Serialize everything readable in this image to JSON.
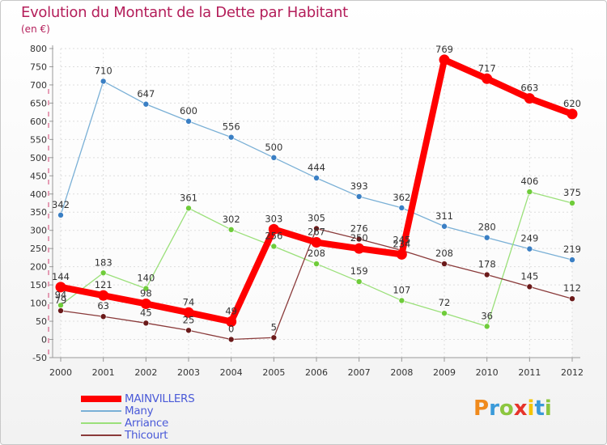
{
  "header": {
    "title": "Evolution du Montant de la Dette par Habitant",
    "unit": "(en €)"
  },
  "logo": {
    "text": "Proxiti",
    "letters": [
      {
        "ch": "P",
        "color": "#f08a1c"
      },
      {
        "ch": "r",
        "color": "#3a9ad9"
      },
      {
        "ch": "o",
        "color": "#8cc63f"
      },
      {
        "ch": "x",
        "color": "#e6332a"
      },
      {
        "ch": "i",
        "color": "#f5c400"
      },
      {
        "ch": "t",
        "color": "#3a9ad9"
      },
      {
        "ch": "i",
        "color": "#8cc63f"
      }
    ]
  },
  "chart_data": {
    "type": "line",
    "title": "Evolution du Montant de la Dette par Habitant",
    "ylabel": "(en €)",
    "x": [
      2000,
      2001,
      2002,
      2003,
      2004,
      2005,
      2006,
      2007,
      2008,
      2009,
      2010,
      2011,
      2012
    ],
    "ylim": [
      -50,
      800
    ],
    "yticks": [
      -50,
      0,
      50,
      100,
      150,
      200,
      250,
      300,
      350,
      400,
      450,
      500,
      550,
      600,
      650,
      700,
      750,
      800
    ],
    "grid": true,
    "legend_position": "bottom-left",
    "series": [
      {
        "name": "MAINVILLERS",
        "color": "#ff0000",
        "point_color": "#ff0000",
        "values": [
          144,
          121,
          98,
          74,
          49,
          303,
          267,
          250,
          234,
          769,
          717,
          663,
          620
        ],
        "labels": [
          "144",
          "121",
          "98",
          "74",
          "49",
          "303",
          "267",
          "250",
          "234",
          "769",
          "717",
          "663",
          "620"
        ],
        "emphasis": true
      },
      {
        "name": "Many",
        "color": "#7ab0d6",
        "point_color": "#3a7fc4",
        "values": [
          342,
          710,
          647,
          600,
          556,
          500,
          444,
          393,
          362,
          311,
          280,
          249,
          219
        ],
        "labels": [
          "342",
          "710",
          "647",
          "600",
          "556",
          "500",
          "444",
          "393",
          "362",
          "311",
          "280",
          "249",
          "219"
        ]
      },
      {
        "name": "Arriance",
        "color": "#9be07a",
        "point_color": "#6fcc3a",
        "values": [
          94,
          183,
          140,
          361,
          302,
          256,
          208,
          159,
          107,
          72,
          36,
          406,
          375
        ],
        "labels": [
          "94",
          "183",
          "140",
          "361",
          "302",
          "256",
          "208",
          "159",
          "107",
          "72",
          "36",
          "406",
          "375"
        ]
      },
      {
        "name": "Thicourt",
        "color": "#8a3a3a",
        "point_color": "#6b1a1a",
        "values": [
          79,
          63,
          45,
          25,
          0,
          5,
          305,
          276,
          245,
          208,
          178,
          145,
          112
        ],
        "labels": [
          "79",
          "63",
          "45",
          "25",
          "0",
          "5",
          "305",
          "276",
          "245",
          "208",
          "178",
          "145",
          "112"
        ]
      }
    ]
  }
}
